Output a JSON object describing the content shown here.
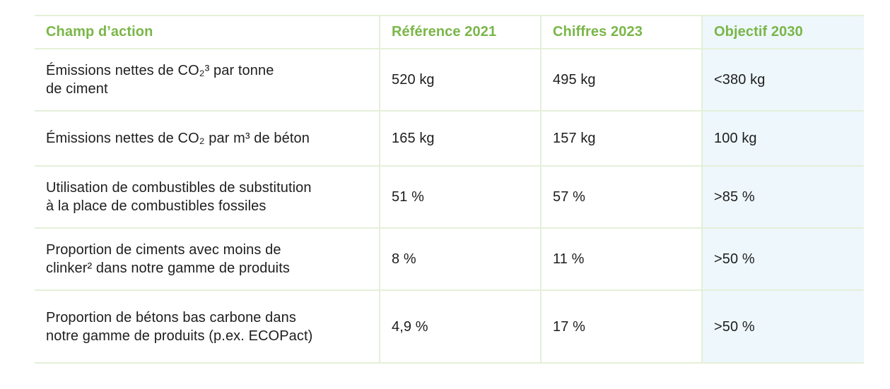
{
  "table": {
    "headers": [
      "Champ d’action",
      "Référence 2021",
      "Chiffres 2023",
      "Objectif 2030"
    ],
    "rows": [
      {
        "field_line1": "Émissions nettes de CO₂³ par tonne",
        "field_line2": "de ciment",
        "ref_2021": "520 kg",
        "fig_2023": "495 kg",
        "target_2030": "<380 kg"
      },
      {
        "field_line1": "Émissions nettes de CO₂ par m³ de béton",
        "field_line2": "",
        "ref_2021": "165 kg",
        "fig_2023": "157 kg",
        "target_2030": "100 kg"
      },
      {
        "field_line1": "Utilisation de combustibles de substitution",
        "field_line2": "à la place de combustibles fossiles",
        "ref_2021": "51 %",
        "fig_2023": "57 %",
        "target_2030": ">85 %"
      },
      {
        "field_line1": "Proportion de ciments avec moins de",
        "field_line2": "clinker² dans notre gamme de produits",
        "ref_2021": "8 %",
        "fig_2023": "11 %",
        "target_2030": ">50 %"
      },
      {
        "field_line1": "Proportion de bétons bas carbone dans",
        "field_line2": "notre gamme de produits (p.ex. ECOPact)",
        "ref_2021": "4,9 %",
        "fig_2023": "17 %",
        "target_2030": ">50 %"
      }
    ]
  },
  "colors": {
    "header_text": "#7ab648",
    "border": "#e4f0d8",
    "target_column_bg": "#eef7fc",
    "body_text": "#1e1e1e"
  }
}
